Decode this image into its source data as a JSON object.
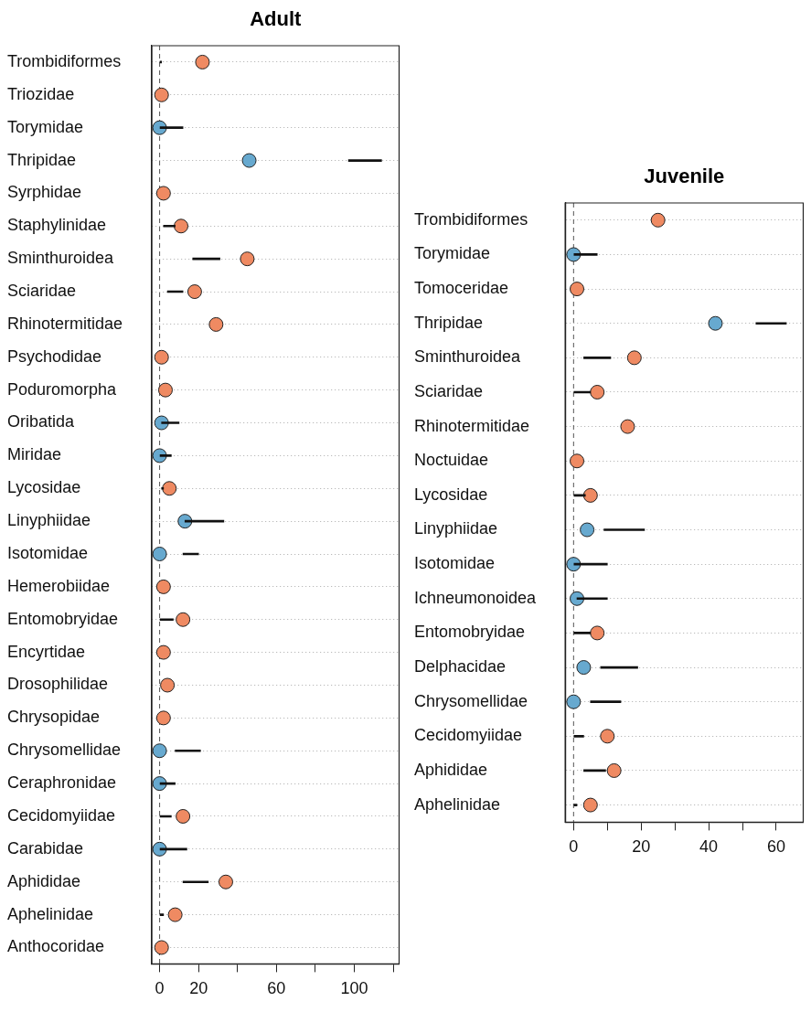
{
  "chart_data": [
    {
      "type": "scatter",
      "title": "Adult",
      "orientation": "horizontal",
      "marker": "circle",
      "grid": "y",
      "categories": [
        "Trombidiformes",
        "Triozidae",
        "Torymidae",
        "Thripidae",
        "Syrphidae",
        "Staphylinidae",
        "Sminthuroidea",
        "Sciaridae",
        "Rhinotermitidae",
        "Psychodidae",
        "Poduromorpha",
        "Oribatida",
        "Miridae",
        "Lycosidae",
        "Linyphiidae",
        "Isotomidae",
        "Hemerobiidae",
        "Entomobryidae",
        "Encyrtidae",
        "Drosophilidae",
        "Chrysopidae",
        "Chrysomellidae",
        "Ceraphronidae",
        "Cecidomyiidae",
        "Carabidae",
        "Aphididae",
        "Aphelinidae",
        "Anthocoridae"
      ],
      "series": [
        {
          "type": "bar",
          "color": "#111111",
          "base": [
            0,
            null,
            0,
            97,
            null,
            2,
            17,
            4,
            null,
            null,
            null,
            1,
            0,
            1,
            13,
            12,
            null,
            0,
            null,
            null,
            null,
            8,
            0,
            0,
            0,
            12,
            0,
            null
          ],
          "values": [
            1,
            null,
            12,
            17,
            null,
            6,
            14,
            8,
            null,
            null,
            null,
            9,
            6,
            1,
            20,
            8,
            null,
            7,
            null,
            null,
            null,
            13,
            8,
            6,
            14,
            13,
            2,
            null
          ]
        },
        {
          "type": "scatter",
          "values": [
            22,
            1,
            0,
            46,
            2,
            11,
            45,
            18,
            29,
            1,
            3,
            1,
            0,
            5,
            13,
            0,
            2,
            12,
            2,
            4,
            2,
            0,
            0,
            12,
            0,
            34,
            8,
            1
          ],
          "colors": [
            "#ef8a62",
            "#ef8a62",
            "#67a9cf",
            "#67a9cf",
            "#ef8a62",
            "#ef8a62",
            "#ef8a62",
            "#ef8a62",
            "#ef8a62",
            "#ef8a62",
            "#ef8a62",
            "#67a9cf",
            "#67a9cf",
            "#ef8a62",
            "#67a9cf",
            "#67a9cf",
            "#ef8a62",
            "#ef8a62",
            "#ef8a62",
            "#ef8a62",
            "#ef8a62",
            "#67a9cf",
            "#67a9cf",
            "#ef8a62",
            "#67a9cf",
            "#ef8a62",
            "#ef8a62",
            "#ef8a62"
          ]
        }
      ],
      "xlim": [
        -4,
        123
      ],
      "xticks": [
        0,
        20,
        {
          "value": 40,
          "label": null
        },
        60,
        {
          "value": 80,
          "label": null
        },
        100,
        {
          "value": 120,
          "label": null
        }
      ],
      "ref_lines": [
        {
          "axis": "x",
          "value": 0,
          "color": "#555555",
          "line_style": "dashed"
        }
      ]
    },
    {
      "type": "scatter",
      "title": "Juvenile",
      "orientation": "horizontal",
      "marker": "circle",
      "grid": "y",
      "categories": [
        "Trombidiformes",
        "Torymidae",
        "Tomoceridae",
        "Thripidae",
        "Sminthuroidea",
        "Sciaridae",
        "Rhinotermitidae",
        "Noctuidae",
        "Lycosidae",
        "Linyphiidae",
        "Isotomidae",
        "Ichneumonoidea",
        "Entomobryidae",
        "Delphacidae",
        "Chrysomellidae",
        "Cecidomyiidae",
        "Aphididae",
        "Aphelinidae"
      ],
      "series": [
        {
          "type": "bar",
          "color": "#111111",
          "base": [
            null,
            0,
            null,
            54,
            3,
            0,
            null,
            null,
            0,
            9,
            0,
            1,
            0,
            8,
            5,
            0,
            3,
            0
          ],
          "values": [
            null,
            7,
            null,
            9,
            8,
            5,
            null,
            null,
            3.5,
            12,
            10,
            9,
            5,
            11,
            9,
            3,
            6.5,
            1
          ]
        },
        {
          "type": "scatter",
          "values": [
            25,
            0,
            1,
            42,
            18,
            7,
            16,
            1,
            5,
            4,
            0,
            1,
            7,
            3,
            0,
            10,
            12,
            5
          ],
          "colors": [
            "#ef8a62",
            "#67a9cf",
            "#ef8a62",
            "#67a9cf",
            "#ef8a62",
            "#ef8a62",
            "#ef8a62",
            "#ef8a62",
            "#ef8a62",
            "#67a9cf",
            "#67a9cf",
            "#67a9cf",
            "#ef8a62",
            "#67a9cf",
            "#67a9cf",
            "#ef8a62",
            "#ef8a62",
            "#ef8a62"
          ]
        }
      ],
      "xlim": [
        -2.5,
        68
      ],
      "xticks": [
        0,
        {
          "value": 10,
          "label": null
        },
        20,
        {
          "value": 30,
          "label": null
        },
        40,
        {
          "value": 50,
          "label": null
        },
        60
      ],
      "ref_lines": [
        {
          "axis": "x",
          "value": 0,
          "color": "#555555",
          "line_style": "dashed"
        }
      ]
    }
  ]
}
